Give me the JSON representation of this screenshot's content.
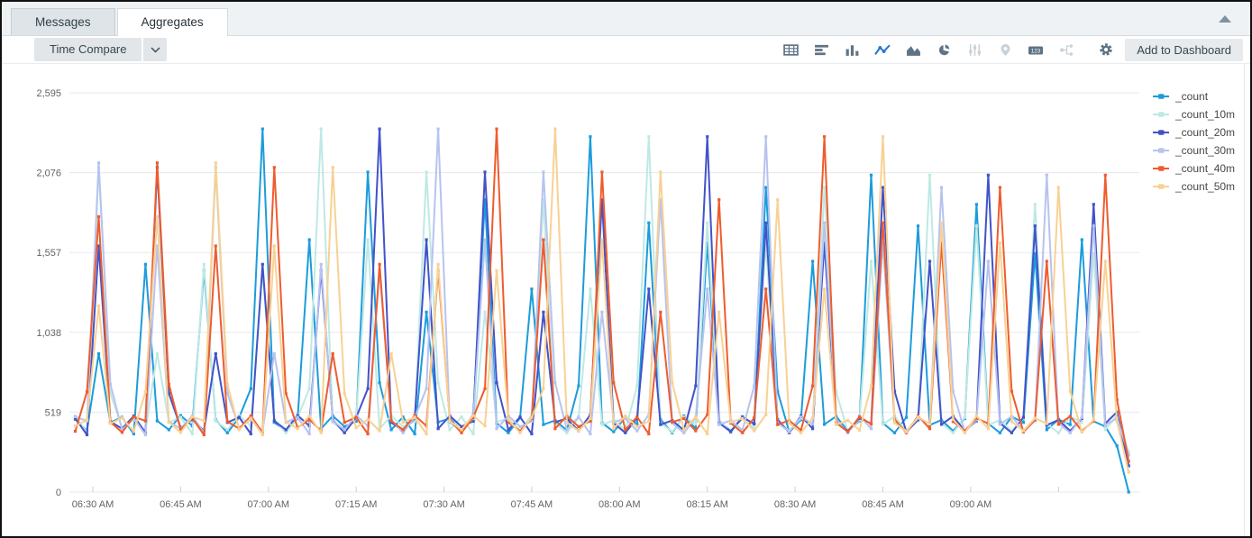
{
  "tabs": [
    {
      "label": "Messages",
      "active": false
    },
    {
      "label": "Aggregates",
      "active": true
    }
  ],
  "toolbar": {
    "time_compare_label": "Time Compare",
    "add_to_dashboard_label": "Add to Dashboard",
    "single_value_text": "123",
    "icons": [
      {
        "name": "table-icon",
        "state": "normal"
      },
      {
        "name": "bar-chart-horizontal-icon",
        "state": "normal"
      },
      {
        "name": "column-chart-icon",
        "state": "normal"
      },
      {
        "name": "line-chart-icon",
        "state": "selected"
      },
      {
        "name": "area-chart-icon",
        "state": "normal"
      },
      {
        "name": "pie-chart-icon",
        "state": "normal"
      },
      {
        "name": "sliders-icon",
        "state": "disabled"
      },
      {
        "name": "map-pin-icon",
        "state": "disabled"
      },
      {
        "name": "single-value-icon",
        "state": "normal"
      },
      {
        "name": "node-graph-icon",
        "state": "disabled"
      },
      {
        "name": "gear-icon",
        "state": "normal"
      }
    ]
  },
  "chart_data": {
    "type": "line",
    "title": "",
    "legend_position": "top-right",
    "grid": true,
    "y_axis": {
      "max": 2595,
      "ticks": [
        {
          "v": 0,
          "label": "0"
        },
        {
          "v": 519,
          "label": "519"
        },
        {
          "v": 1038,
          "label": "1,038"
        },
        {
          "v": 1557,
          "label": "1,557"
        },
        {
          "v": 2076,
          "label": "2,076"
        },
        {
          "v": 2595,
          "label": "2,595"
        }
      ]
    },
    "x_axis": {
      "ticks": [
        {
          "min": 390,
          "label": "06:30 AM"
        },
        {
          "min": 405,
          "label": "06:45 AM"
        },
        {
          "min": 420,
          "label": "07:00 AM"
        },
        {
          "min": 435,
          "label": "07:15 AM"
        },
        {
          "min": 450,
          "label": "07:30 AM"
        },
        {
          "min": 465,
          "label": "07:45 AM"
        },
        {
          "min": 480,
          "label": "08:00 AM"
        },
        {
          "min": 495,
          "label": "08:15 AM"
        },
        {
          "min": 510,
          "label": "08:30 AM"
        },
        {
          "min": 525,
          "label": "08:45 AM"
        },
        {
          "min": 540,
          "label": "09:00 AM"
        },
        {
          "min": 555,
          "label": ""
        }
      ]
    },
    "start_min": 387,
    "step_min": 2,
    "points": 91,
    "base_values": [
      430,
      468,
      1210,
      445,
      482,
      395,
      652,
      1790,
      455,
      388,
      490,
      462,
      2140,
      700,
      405,
      480,
      372,
      1600,
      458,
      412,
      495,
      385,
      2110,
      640,
      418,
      472,
      398,
      900,
      452,
      486,
      378,
      1480,
      462,
      405,
      498,
      430,
      1440,
      470,
      385,
      485,
      672,
      2360,
      452,
      398,
      478,
      1640,
      412,
      495,
      425,
      460,
      2080,
      710,
      405,
      488,
      378,
      1170,
      455,
      478,
      398,
      502,
      1900,
      448,
      385,
      482,
      1320,
      438,
      465,
      402,
      690,
      2310,
      450,
      392,
      488,
      442,
      1750,
      472,
      385,
      495,
      412,
      1620,
      458,
      398,
      480,
      445,
      1980,
      655,
      390,
      470,
      1500,
      440,
      492,
      398,
      462,
      2060,
      448,
      385,
      485,
      1730,
      435,
      468,
      398,
      478,
      1870,
      445,
      385,
      490,
      452,
      1550,
      405,
      472,
      438,
      1640,
      460,
      425,
      360,
      150
    ],
    "series": [
      {
        "name": "_count",
        "color": "#1C9CDB",
        "offset": 25,
        "tail": [
          300,
          0
        ]
      },
      {
        "name": "_count_10m",
        "color": "#BEE9E4",
        "offset": 20,
        "tail": [
          500,
          260
        ]
      },
      {
        "name": "_count_20m",
        "color": "#4253C9",
        "offset": 15,
        "tail": [
          520,
          170
        ]
      },
      {
        "name": "_count_30m",
        "color": "#B7C3EF",
        "offset": 10,
        "tail": [
          480,
          240
        ]
      },
      {
        "name": "_count_40m",
        "color": "#EF5C2E",
        "offset": 5,
        "tail": [
          600,
          200
        ]
      },
      {
        "name": "_count_50m",
        "color": "#F8D193",
        "offset": 0,
        "tail": [
          460,
          130
        ]
      }
    ]
  }
}
